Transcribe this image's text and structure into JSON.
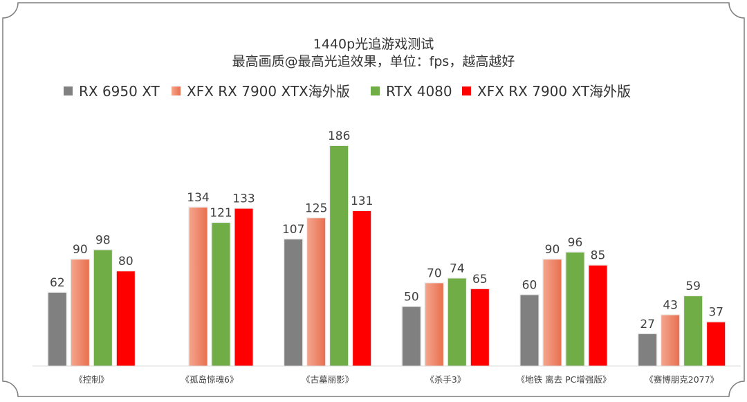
{
  "chart_data": {
    "type": "bar",
    "title": "1440p光追游戏测试",
    "subtitle": "最高画质@最高光追效果，单位：fps，越高越好",
    "xlabel": "",
    "ylabel": "",
    "ylim": [
      0,
      186
    ],
    "grid": false,
    "legend_position": "top",
    "categories": [
      "《控制》",
      "《孤岛惊魂6》",
      "《古墓丽影》",
      "《杀手3》",
      "《地铁 离去 PC增强版》",
      "《赛博朋克2077》"
    ],
    "series": [
      {
        "name": "RX 6950 XT",
        "color": "#808080",
        "values": [
          62,
          null,
          107,
          50,
          60,
          27
        ]
      },
      {
        "name": "XFX RX 7900 XTX海外版",
        "color": "#e8704f",
        "gradient_from": "#f4a58e",
        "values": [
          90,
          134,
          125,
          70,
          90,
          43
        ]
      },
      {
        "name": "RTX 4080",
        "color": "#70ad47",
        "values": [
          98,
          121,
          186,
          74,
          96,
          59
        ]
      },
      {
        "name": "XFX RX 7900 XT海外版",
        "color": "#ff0000",
        "values": [
          80,
          133,
          131,
          65,
          85,
          37
        ]
      }
    ]
  }
}
